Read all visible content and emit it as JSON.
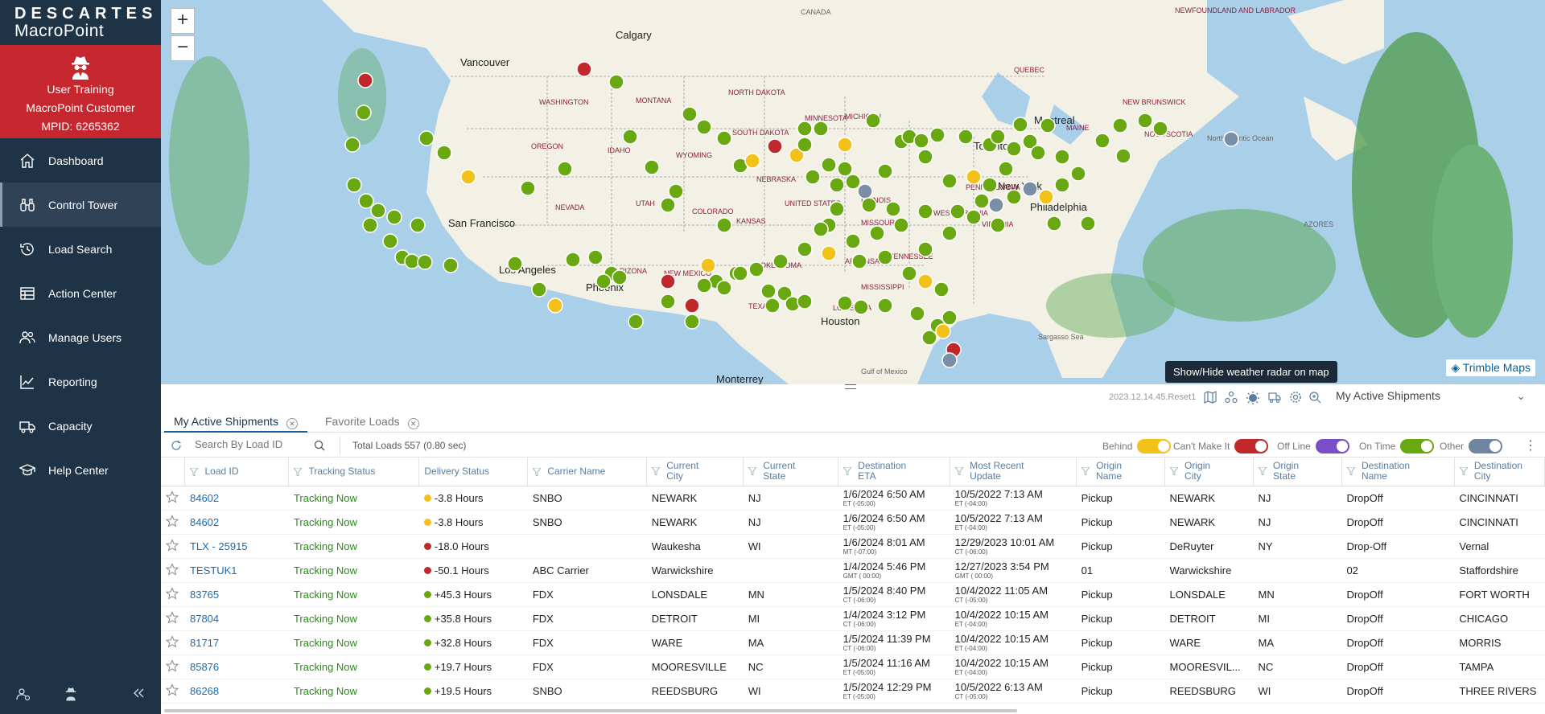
{
  "brand": {
    "top": "DESCARTES",
    "bottom": "MacroPoint"
  },
  "user": {
    "line1": "User Training",
    "line2": "MacroPoint Customer",
    "line3": "MPID: 6265362"
  },
  "nav": [
    {
      "label": "Dashboard",
      "icon": "home-icon"
    },
    {
      "label": "Control Tower",
      "icon": "binoculars-icon"
    },
    {
      "label": "Load Search",
      "icon": "history-icon"
    },
    {
      "label": "Action Center",
      "icon": "table-icon"
    },
    {
      "label": "Manage Users",
      "icon": "users-icon"
    },
    {
      "label": "Reporting",
      "icon": "chart-line-icon"
    },
    {
      "label": "Capacity",
      "icon": "truck-icon"
    },
    {
      "label": "Help Center",
      "icon": "graduation-cap-icon"
    }
  ],
  "map": {
    "zoom_in": "+",
    "zoom_out": "−",
    "attribution": "Trimble Maps",
    "tooltip": "Show/Hide weather radar on map",
    "labels": [
      {
        "text": "CANADA"
      },
      {
        "text": "Calgary"
      },
      {
        "text": "Vancouver"
      },
      {
        "text": "WASHINGTON"
      },
      {
        "text": "MONTANA"
      },
      {
        "text": "NORTH DAKOTA"
      },
      {
        "text": "MINNESOTA"
      },
      {
        "text": "OREGON"
      },
      {
        "text": "IDAHO"
      },
      {
        "text": "WYOMING"
      },
      {
        "text": "SOUTH DAKOTA"
      },
      {
        "text": "NEBRASKA"
      },
      {
        "text": "NEVADA"
      },
      {
        "text": "UTAH"
      },
      {
        "text": "COLORADO"
      },
      {
        "text": "KANSAS"
      },
      {
        "text": "San Francisco"
      },
      {
        "text": "Los Angeles"
      },
      {
        "text": "ARIZONA"
      },
      {
        "text": "Phoenix"
      },
      {
        "text": "NEW MEXICO"
      },
      {
        "text": "OKLAHOMA"
      },
      {
        "text": "TEXAS"
      },
      {
        "text": "Houston"
      },
      {
        "text": "MISSISSIPPI"
      },
      {
        "text": "Monterrey"
      },
      {
        "text": "Gulf of Mexico"
      },
      {
        "text": "Sargasso Sea"
      },
      {
        "text": "Toronto"
      },
      {
        "text": "Montreal"
      },
      {
        "text": "New York"
      },
      {
        "text": "Philadelphia"
      },
      {
        "text": "QUEBEC"
      },
      {
        "text": "NEWFOUNDLAND AND LABRADOR"
      },
      {
        "text": "NEW BRUNSWICK"
      },
      {
        "text": "NOVA SCOTIA"
      },
      {
        "text": "MAINE"
      },
      {
        "text": "North Atlantic Ocean"
      },
      {
        "text": "AZORES"
      },
      {
        "text": "MICHIGAN"
      },
      {
        "text": "PENNSYLVANIA"
      },
      {
        "text": "WEST VIRGINIA"
      },
      {
        "text": "MISSOURI"
      },
      {
        "text": "UNITED STATES"
      },
      {
        "text": "ILLINOIS"
      },
      {
        "text": "LOUISIANA"
      },
      {
        "text": "ARKANSAS"
      },
      {
        "text": "TENNESSEE"
      },
      {
        "text": "VIRGINIA"
      }
    ],
    "colors": {
      "on_time": "#6aa812",
      "behind": "#f2c21b",
      "cant_make_it": "#c0282b",
      "other": "#7a8fa6"
    }
  },
  "toolbar": {
    "version": "2023.12.14.45.Reset1",
    "view_select": "My Active Shipments",
    "icons": [
      "map-icon",
      "cluster-icon",
      "weather-radar-icon",
      "truck-route-icon",
      "settings-icon",
      "zoom-fit-icon"
    ]
  },
  "tabs": [
    {
      "label": "My Active Shipments",
      "active": true
    },
    {
      "label": "Favorite Loads",
      "active": false
    }
  ],
  "filter": {
    "search_placeholder": "Search By Load ID",
    "total": "Total Loads 557 (0.80 sec)",
    "legend": [
      {
        "label": "Behind",
        "color": "#f2c21b"
      },
      {
        "label": "Can't Make It",
        "color": "#c0282b"
      },
      {
        "label": "Off Line",
        "color": "#7b4ec9"
      },
      {
        "label": "On Time",
        "color": "#6aa812"
      },
      {
        "label": "Other",
        "color": "#6f86a0"
      }
    ]
  },
  "table": {
    "columns": [
      "Load ID",
      "Tracking Status",
      "Delivery Status",
      "Carrier Name",
      "Current City",
      "Current State",
      "Destination ETA",
      "Most Recent Update",
      "Origin Name",
      "Origin City",
      "Origin State",
      "Destination Name",
      "Destination City"
    ],
    "rows": [
      {
        "id": "84602",
        "tracking": "Tracking Now",
        "delivery": "-3.8 Hours",
        "dot": "#f2c21b",
        "carrier": "SNBO",
        "city": "NEWARK",
        "state": "NJ",
        "eta": "1/6/2024  6:50 AM",
        "eta_tz": "ET (-05:00)",
        "upd": "10/5/2022  7:13 AM",
        "upd_tz": "ET (-04:00)",
        "oname": "Pickup",
        "ocity": "NEWARK",
        "ostate": "NJ",
        "dname": "DropOff",
        "dcity": "CINCINNATI"
      },
      {
        "id": "84602",
        "tracking": "Tracking Now",
        "delivery": "-3.8 Hours",
        "dot": "#f2c21b",
        "carrier": "SNBO",
        "city": "NEWARK",
        "state": "NJ",
        "eta": "1/6/2024  6:50 AM",
        "eta_tz": "ET (-05:00)",
        "upd": "10/5/2022  7:13 AM",
        "upd_tz": "ET (-04:00)",
        "oname": "Pickup",
        "ocity": "NEWARK",
        "ostate": "NJ",
        "dname": "DropOff",
        "dcity": "CINCINNATI"
      },
      {
        "id": "TLX - 25915",
        "tracking": "Tracking Now",
        "delivery": "-18.0 Hours",
        "dot": "#c0282b",
        "carrier": "",
        "city": "Waukesha",
        "state": "WI",
        "eta": "1/6/2024  8:01 AM",
        "eta_tz": "MT (-07:00)",
        "upd": "12/29/2023  10:01 AM",
        "upd_tz": "CT (-06:00)",
        "oname": "Pickup",
        "ocity": "DeRuyter",
        "ostate": "NY",
        "dname": "Drop-Off",
        "dcity": "Vernal"
      },
      {
        "id": "TESTUK1",
        "tracking": "Tracking Now",
        "delivery": "-50.1 Hours",
        "dot": "#c0282b",
        "carrier": "ABC Carrier",
        "city": "Warwickshire",
        "state": "",
        "eta": "1/4/2024  5:46 PM",
        "eta_tz": "GMT ( 00:00)",
        "upd": "12/27/2023  3:54 PM",
        "upd_tz": "GMT ( 00:00)",
        "oname": "01",
        "ocity": "Warwickshire",
        "ostate": "",
        "dname": "02",
        "dcity": "Staffordshire"
      },
      {
        "id": "83765",
        "tracking": "Tracking Now",
        "delivery": "+45.3 Hours",
        "dot": "#6aa812",
        "carrier": "FDX",
        "city": "LONSDALE",
        "state": "MN",
        "eta": "1/5/2024  8:40 PM",
        "eta_tz": "CT (-06:00)",
        "upd": "10/4/2022  11:05 AM",
        "upd_tz": "CT (-05:00)",
        "oname": "Pickup",
        "ocity": "LONSDALE",
        "ostate": "MN",
        "dname": "DropOff",
        "dcity": "FORT WORTH"
      },
      {
        "id": "87804",
        "tracking": "Tracking Now",
        "delivery": "+35.8 Hours",
        "dot": "#6aa812",
        "carrier": "FDX",
        "city": "DETROIT",
        "state": "MI",
        "eta": "1/4/2024  3:12 PM",
        "eta_tz": "CT (-06:00)",
        "upd": "10/4/2022  10:15 AM",
        "upd_tz": "ET (-04:00)",
        "oname": "Pickup",
        "ocity": "DETROIT",
        "ostate": "MI",
        "dname": "DropOff",
        "dcity": "CHICAGO"
      },
      {
        "id": "81717",
        "tracking": "Tracking Now",
        "delivery": "+32.8 Hours",
        "dot": "#6aa812",
        "carrier": "FDX",
        "city": "WARE",
        "state": "MA",
        "eta": "1/5/2024  11:39 PM",
        "eta_tz": "CT (-06:00)",
        "upd": "10/4/2022  10:15 AM",
        "upd_tz": "ET (-04:00)",
        "oname": "Pickup",
        "ocity": "WARE",
        "ostate": "MA",
        "dname": "DropOff",
        "dcity": "MORRIS"
      },
      {
        "id": "85876",
        "tracking": "Tracking Now",
        "delivery": "+19.7 Hours",
        "dot": "#6aa812",
        "carrier": "FDX",
        "city": "MOORESVILLE",
        "state": "NC",
        "eta": "1/5/2024  11:16 AM",
        "eta_tz": "ET (-05:00)",
        "upd": "10/4/2022  10:15 AM",
        "upd_tz": "ET (-04:00)",
        "oname": "Pickup",
        "ocity": "MOORESVIL...",
        "ostate": "NC",
        "dname": "DropOff",
        "dcity": "TAMPA"
      },
      {
        "id": "86268",
        "tracking": "Tracking Now",
        "delivery": "+19.5 Hours",
        "dot": "#6aa812",
        "carrier": "SNBO",
        "city": "REEDSBURG",
        "state": "WI",
        "eta": "1/5/2024  12:29 PM",
        "eta_tz": "ET (-05:00)",
        "upd": "10/5/2022  6:13 AM",
        "upd_tz": "CT (-05:00)",
        "oname": "Pickup",
        "ocity": "REEDSBURG",
        "ostate": "WI",
        "dname": "DropOff",
        "dcity": "THREE RIVERS"
      }
    ]
  }
}
